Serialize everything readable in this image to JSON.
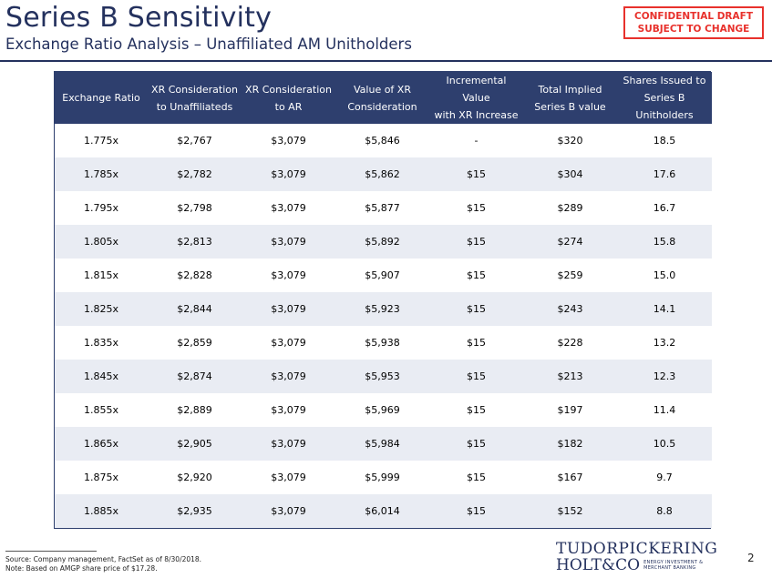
{
  "header": {
    "title": "Series B Sensitivity",
    "subtitle": "Exchange Ratio Analysis – Unaffiliated AM Unitholders",
    "confidential_line1": "CONFIDENTIAL DRAFT",
    "confidential_line2": "SUBJECT TO CHANGE"
  },
  "table": {
    "columns": [
      [
        "Exchange Ratio"
      ],
      [
        "XR Consideration",
        "to Unaffiliateds"
      ],
      [
        "XR Consideration",
        "to AR"
      ],
      [
        "Value of XR",
        "Consideration"
      ],
      [
        "Incremental Value",
        "with XR Increase"
      ],
      [
        "Total Implied",
        "Series B value"
      ],
      [
        "Shares Issued to",
        "Series B",
        "Unitholders"
      ]
    ],
    "rows": [
      [
        "1.775x",
        "$2,767",
        "$3,079",
        "$5,846",
        "-",
        "$320",
        "18.5"
      ],
      [
        "1.785x",
        "$2,782",
        "$3,079",
        "$5,862",
        "$15",
        "$304",
        "17.6"
      ],
      [
        "1.795x",
        "$2,798",
        "$3,079",
        "$5,877",
        "$15",
        "$289",
        "16.7"
      ],
      [
        "1.805x",
        "$2,813",
        "$3,079",
        "$5,892",
        "$15",
        "$274",
        "15.8"
      ],
      [
        "1.815x",
        "$2,828",
        "$3,079",
        "$5,907",
        "$15",
        "$259",
        "15.0"
      ],
      [
        "1.825x",
        "$2,844",
        "$3,079",
        "$5,923",
        "$15",
        "$243",
        "14.1"
      ],
      [
        "1.835x",
        "$2,859",
        "$3,079",
        "$5,938",
        "$15",
        "$228",
        "13.2"
      ],
      [
        "1.845x",
        "$2,874",
        "$3,079",
        "$5,953",
        "$15",
        "$213",
        "12.3"
      ],
      [
        "1.855x",
        "$2,889",
        "$3,079",
        "$5,969",
        "$15",
        "$197",
        "11.4"
      ],
      [
        "1.865x",
        "$2,905",
        "$3,079",
        "$5,984",
        "$15",
        "$182",
        "10.5"
      ],
      [
        "1.875x",
        "$2,920",
        "$3,079",
        "$5,999",
        "$15",
        "$167",
        "9.7"
      ],
      [
        "1.885x",
        "$2,935",
        "$3,079",
        "$6,014",
        "$15",
        "$152",
        "8.8"
      ]
    ]
  },
  "footer": {
    "source": "Source: Company management, FactSet as of 8/30/2018.",
    "note": "Note: Based on AMGP share price of $17.28.",
    "logo_line1": "TUDORPICKERING",
    "logo_line2": "HOLT&CO",
    "logo_tag1": "ENERGY INVESTMENT &",
    "logo_tag2": "MERCHANT BANKING",
    "page_number": "2"
  },
  "colors": {
    "navy": "#24315e",
    "header_fill": "#2e3f6e",
    "stripe": "#e9ecf3",
    "confidential_red": "#e8312c"
  }
}
